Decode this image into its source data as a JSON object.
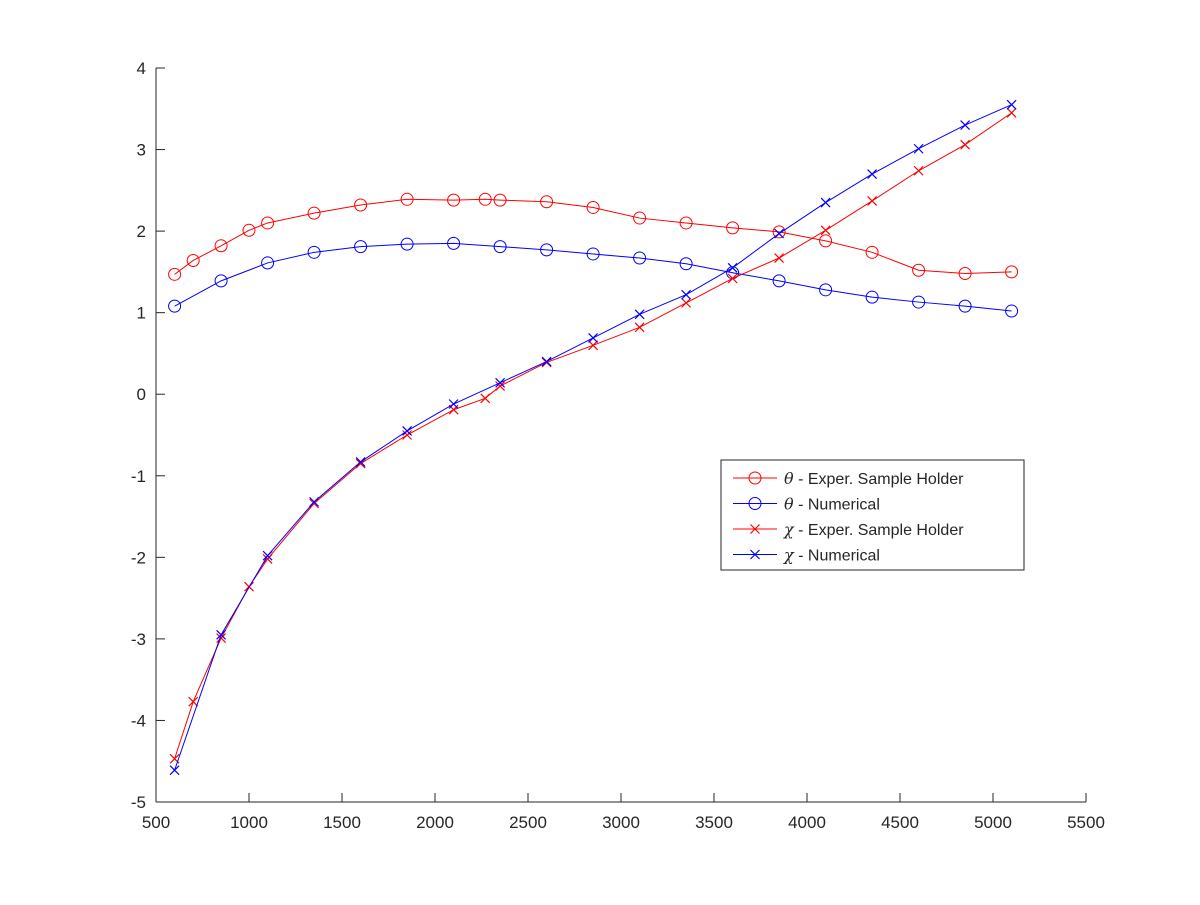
{
  "chart_data": {
    "type": "line",
    "title": "",
    "xlabel": "",
    "ylabel": "",
    "xlim": [
      500,
      5500
    ],
    "ylim": [
      -5,
      4
    ],
    "xticks": [
      500,
      1000,
      1500,
      2000,
      2500,
      3000,
      3500,
      4000,
      4500,
      5000,
      5500
    ],
    "yticks": [
      -5,
      -4,
      -3,
      -2,
      -1,
      0,
      1,
      2,
      3,
      4
    ],
    "xtick_labels": [
      "500",
      "1000",
      "1500",
      "2000",
      "2500",
      "3000",
      "3500",
      "4000",
      "4500",
      "5000",
      "5500"
    ],
    "ytick_labels": [
      "-5",
      "-4",
      "-3",
      "-2",
      "-1",
      "0",
      "1",
      "2",
      "3",
      "4"
    ],
    "grid": false,
    "legend_position": "right",
    "series": [
      {
        "name": "θ - Exper. Sample Holder",
        "symbol": "θ",
        "label_text": " - Exper. Sample Holder",
        "color": "#ff0000",
        "marker": "circle",
        "x": [
          600,
          700,
          850,
          1000,
          1100,
          1350,
          1600,
          1850,
          2100,
          2270,
          2350,
          2600,
          2850,
          3100,
          3350,
          3600,
          3850,
          4100,
          4350,
          4600,
          4850,
          5100
        ],
        "y": [
          1.47,
          1.64,
          1.82,
          2.01,
          2.1,
          2.22,
          2.32,
          2.39,
          2.38,
          2.39,
          2.38,
          2.36,
          2.29,
          2.16,
          2.1,
          2.04,
          1.99,
          1.88,
          1.74,
          1.52,
          1.48,
          1.5
        ]
      },
      {
        "name": "θ - Numerical",
        "symbol": "θ",
        "label_text": " - Numerical",
        "color": "#0000ff",
        "marker": "circle",
        "x": [
          600,
          850,
          1100,
          1350,
          1600,
          1850,
          2100,
          2350,
          2600,
          2850,
          3100,
          3350,
          3600,
          3850,
          4100,
          4350,
          4600,
          4850,
          5100
        ],
        "y": [
          1.08,
          1.39,
          1.61,
          1.74,
          1.81,
          1.84,
          1.85,
          1.81,
          1.77,
          1.72,
          1.67,
          1.6,
          1.49,
          1.39,
          1.28,
          1.19,
          1.13,
          1.08,
          1.02
        ]
      },
      {
        "name": "χ - Exper. Sample Holder",
        "symbol": "χ",
        "label_text": " - Exper. Sample Holder",
        "color": "#ff0000",
        "marker": "x",
        "x": [
          600,
          700,
          850,
          1000,
          1100,
          1350,
          1600,
          1850,
          2100,
          2270,
          2350,
          2600,
          2850,
          3100,
          3350,
          3600,
          3850,
          4100,
          4350,
          4600,
          4850,
          5100
        ],
        "y": [
          -4.47,
          -3.77,
          -2.99,
          -2.36,
          -2.02,
          -1.34,
          -0.85,
          -0.5,
          -0.19,
          -0.05,
          0.1,
          0.39,
          0.6,
          0.82,
          1.12,
          1.42,
          1.67,
          2.01,
          2.37,
          2.74,
          3.06,
          3.45
        ]
      },
      {
        "name": "χ - Numerical",
        "symbol": "χ",
        "label_text": " - Numerical",
        "color": "#0000ff",
        "marker": "x",
        "x": [
          600,
          850,
          1100,
          1350,
          1600,
          1850,
          2100,
          2350,
          2600,
          2850,
          3100,
          3350,
          3600,
          3850,
          4100,
          4350,
          4600,
          4850,
          5100
        ],
        "y": [
          -4.61,
          -2.95,
          -1.98,
          -1.32,
          -0.83,
          -0.45,
          -0.12,
          0.14,
          0.4,
          0.69,
          0.98,
          1.22,
          1.55,
          1.97,
          2.35,
          2.7,
          3.01,
          3.3,
          3.55
        ]
      }
    ]
  }
}
